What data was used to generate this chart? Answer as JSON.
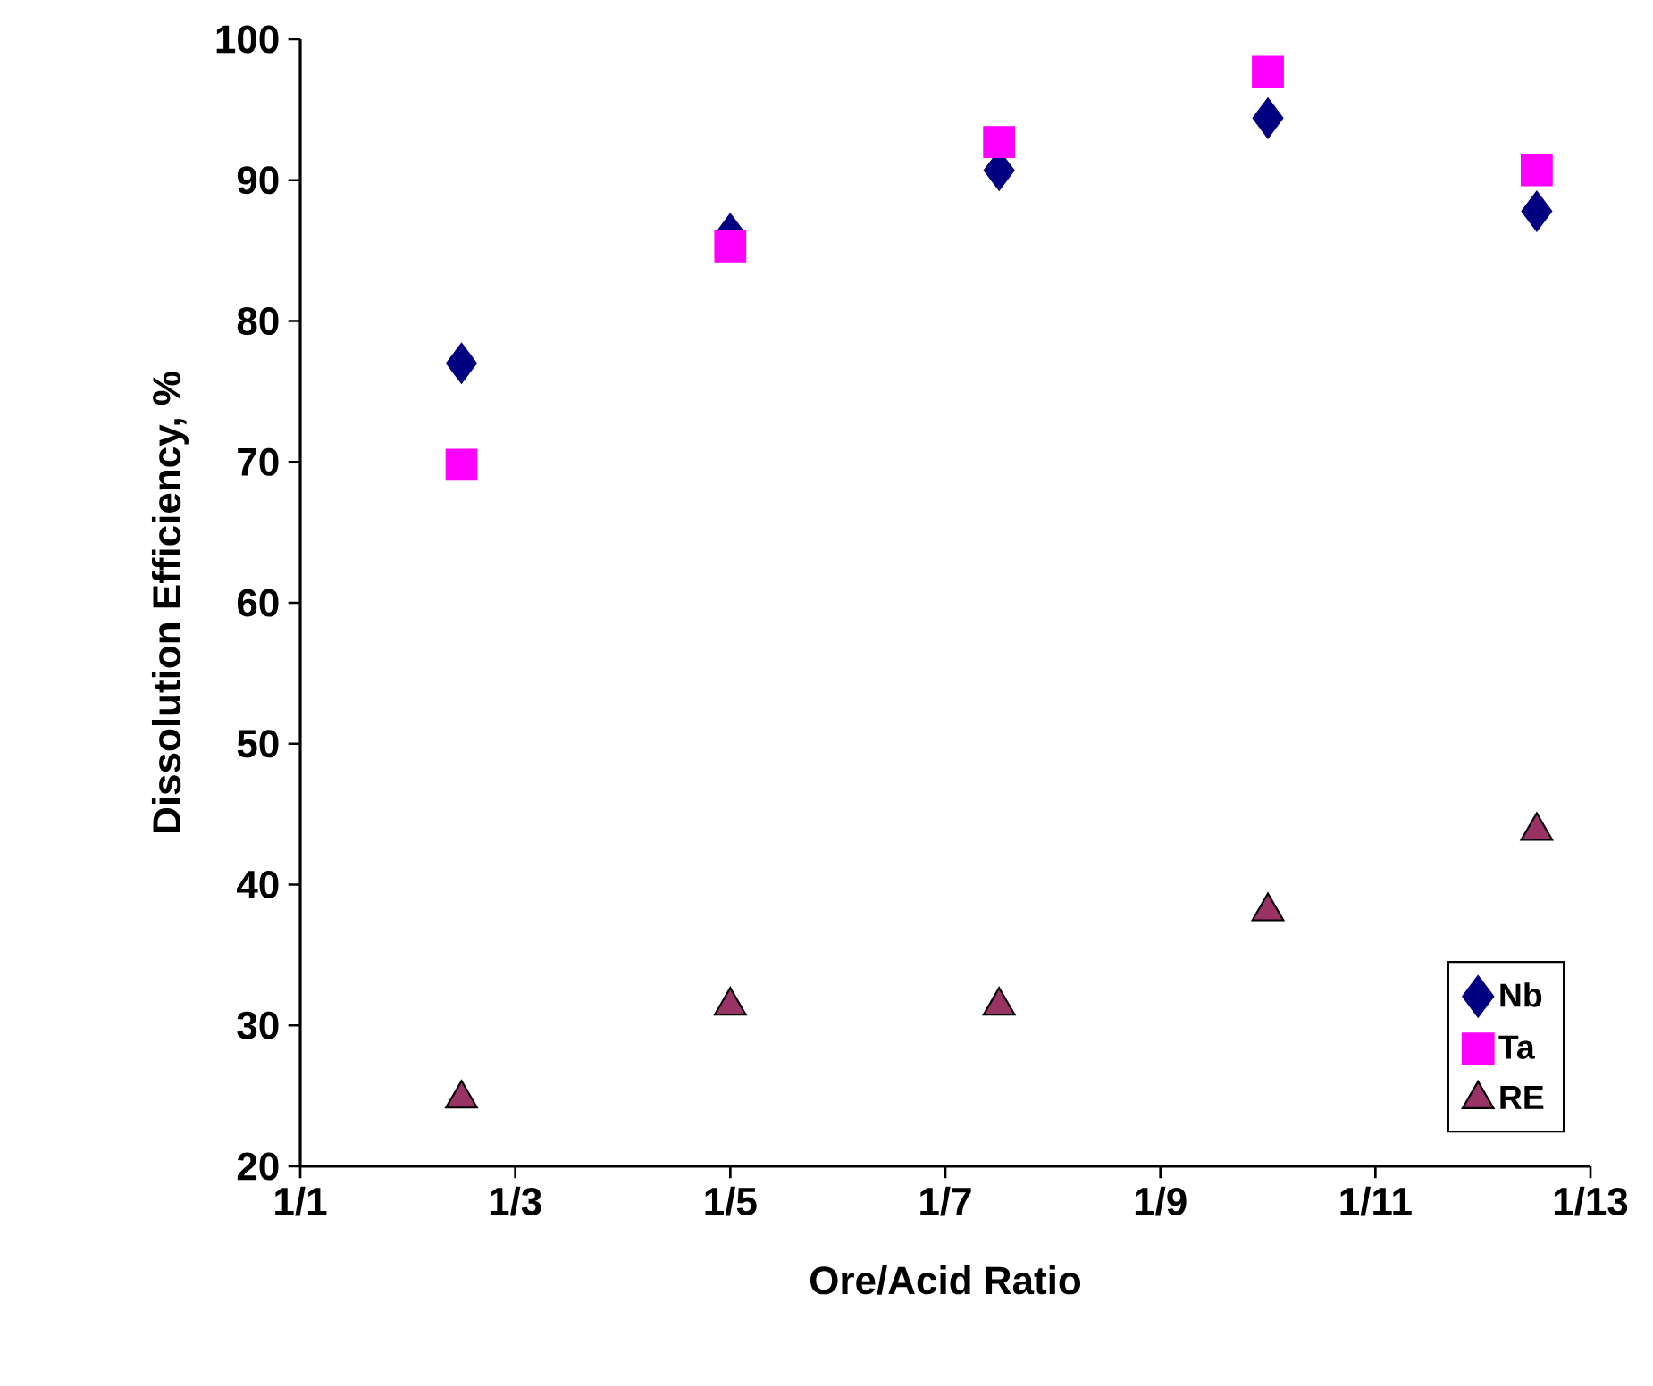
{
  "chart_data": {
    "type": "scatter",
    "xlabel": "Ore/Acid Ratio",
    "ylabel": "Dissolution  Efficiency, %",
    "categories": [
      "1/1",
      null,
      null,
      null,
      "1/3",
      null,
      null,
      null,
      "1/5",
      null,
      null,
      null,
      "1/7",
      null,
      null,
      null,
      "1/9",
      null,
      null,
      null,
      "1/11",
      null,
      null,
      null,
      "1/13"
    ],
    "series": [
      {
        "name": "Nb",
        "color": "#000080",
        "marker": "diamond",
        "values": [
          null,
          null,
          null,
          77.0,
          null,
          null,
          null,
          null,
          86.2,
          null,
          null,
          null,
          null,
          90.7,
          null,
          null,
          null,
          null,
          94.4,
          null,
          null,
          null,
          null,
          87.8,
          null
        ]
      },
      {
        "name": "Ta",
        "color": "#ff00ff",
        "marker": "square",
        "values": [
          null,
          null,
          null,
          69.8,
          null,
          null,
          null,
          null,
          85.3,
          null,
          null,
          null,
          null,
          92.7,
          null,
          null,
          null,
          null,
          97.7,
          null,
          null,
          null,
          null,
          90.7,
          null
        ]
      },
      {
        "name": "RE",
        "color": "#993366",
        "marker": "triangle",
        "values": [
          null,
          null,
          null,
          24.8,
          null,
          null,
          null,
          null,
          31.4,
          null,
          null,
          null,
          null,
          31.4,
          null,
          null,
          null,
          null,
          38.1,
          null,
          null,
          null,
          null,
          43.8,
          null
        ]
      }
    ],
    "ylim": [
      20,
      100
    ],
    "yticks": [
      20,
      30,
      40,
      50,
      60,
      70,
      80,
      90,
      100
    ],
    "grid": false,
    "legend": "bottom right"
  }
}
